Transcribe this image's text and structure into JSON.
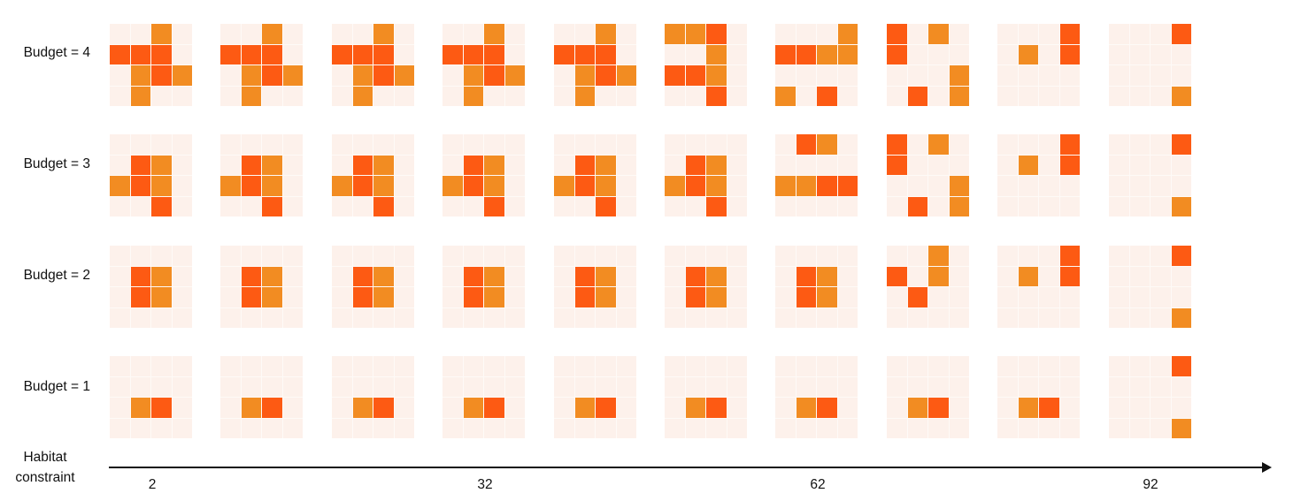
{
  "colors": {
    "background": "#fdf1eb",
    "light_orange": "#f28c22",
    "dark_orange": "#fd5a13"
  },
  "row_labels": [
    "Budget = 4",
    "Budget = 3",
    "Budget = 2",
    "Budget = 1"
  ],
  "axis": {
    "title_line1": "Habitat",
    "title_line2": "constraint",
    "ticks": [
      "2",
      "32",
      "62",
      "92"
    ]
  },
  "grids": [
    [
      [
        [
          0,
          0,
          1,
          0
        ],
        [
          2,
          2,
          2,
          0
        ],
        [
          0,
          1,
          2,
          1
        ],
        [
          0,
          1,
          0,
          0
        ]
      ],
      [
        [
          0,
          0,
          1,
          0
        ],
        [
          2,
          2,
          2,
          0
        ],
        [
          0,
          1,
          2,
          1
        ],
        [
          0,
          1,
          0,
          0
        ]
      ],
      [
        [
          0,
          0,
          1,
          0
        ],
        [
          2,
          2,
          2,
          0
        ],
        [
          0,
          1,
          2,
          1
        ],
        [
          0,
          1,
          0,
          0
        ]
      ],
      [
        [
          0,
          0,
          1,
          0
        ],
        [
          2,
          2,
          2,
          0
        ],
        [
          0,
          1,
          2,
          1
        ],
        [
          0,
          1,
          0,
          0
        ]
      ],
      [
        [
          0,
          0,
          1,
          0
        ],
        [
          2,
          2,
          2,
          0
        ],
        [
          0,
          1,
          2,
          1
        ],
        [
          0,
          1,
          0,
          0
        ]
      ],
      [
        [
          1,
          1,
          2,
          0
        ],
        [
          0,
          0,
          1,
          0
        ],
        [
          2,
          2,
          1,
          0
        ],
        [
          0,
          0,
          2,
          0
        ]
      ],
      [
        [
          0,
          0,
          0,
          1
        ],
        [
          2,
          2,
          1,
          1
        ],
        [
          0,
          0,
          0,
          0
        ],
        [
          1,
          0,
          2,
          0
        ]
      ],
      [
        [
          2,
          0,
          1,
          0
        ],
        [
          2,
          0,
          0,
          0
        ],
        [
          0,
          0,
          0,
          1
        ],
        [
          0,
          2,
          0,
          1
        ]
      ],
      [
        [
          0,
          0,
          0,
          2
        ],
        [
          0,
          1,
          0,
          2
        ],
        [
          0,
          0,
          0,
          0
        ],
        [
          0,
          0,
          0,
          0
        ]
      ],
      [
        [
          0,
          0,
          0,
          2
        ],
        [
          0,
          0,
          0,
          0
        ],
        [
          0,
          0,
          0,
          0
        ],
        [
          0,
          0,
          0,
          1
        ]
      ]
    ],
    [
      [
        [
          0,
          0,
          0,
          0
        ],
        [
          0,
          2,
          1,
          0
        ],
        [
          1,
          2,
          1,
          0
        ],
        [
          0,
          0,
          2,
          0
        ]
      ],
      [
        [
          0,
          0,
          0,
          0
        ],
        [
          0,
          2,
          1,
          0
        ],
        [
          1,
          2,
          1,
          0
        ],
        [
          0,
          0,
          2,
          0
        ]
      ],
      [
        [
          0,
          0,
          0,
          0
        ],
        [
          0,
          2,
          1,
          0
        ],
        [
          1,
          2,
          1,
          0
        ],
        [
          0,
          0,
          2,
          0
        ]
      ],
      [
        [
          0,
          0,
          0,
          0
        ],
        [
          0,
          2,
          1,
          0
        ],
        [
          1,
          2,
          1,
          0
        ],
        [
          0,
          0,
          2,
          0
        ]
      ],
      [
        [
          0,
          0,
          0,
          0
        ],
        [
          0,
          2,
          1,
          0
        ],
        [
          1,
          2,
          1,
          0
        ],
        [
          0,
          0,
          2,
          0
        ]
      ],
      [
        [
          0,
          0,
          0,
          0
        ],
        [
          0,
          2,
          1,
          0
        ],
        [
          1,
          2,
          1,
          0
        ],
        [
          0,
          0,
          2,
          0
        ]
      ],
      [
        [
          0,
          2,
          1,
          0
        ],
        [
          0,
          0,
          0,
          0
        ],
        [
          1,
          1,
          2,
          2
        ],
        [
          0,
          0,
          0,
          0
        ]
      ],
      [
        [
          2,
          0,
          1,
          0
        ],
        [
          2,
          0,
          0,
          0
        ],
        [
          0,
          0,
          0,
          1
        ],
        [
          0,
          2,
          0,
          1
        ]
      ],
      [
        [
          0,
          0,
          0,
          2
        ],
        [
          0,
          1,
          0,
          2
        ],
        [
          0,
          0,
          0,
          0
        ],
        [
          0,
          0,
          0,
          0
        ]
      ],
      [
        [
          0,
          0,
          0,
          2
        ],
        [
          0,
          0,
          0,
          0
        ],
        [
          0,
          0,
          0,
          0
        ],
        [
          0,
          0,
          0,
          1
        ]
      ]
    ],
    [
      [
        [
          0,
          0,
          0,
          0
        ],
        [
          0,
          2,
          1,
          0
        ],
        [
          0,
          2,
          1,
          0
        ],
        [
          0,
          0,
          0,
          0
        ]
      ],
      [
        [
          0,
          0,
          0,
          0
        ],
        [
          0,
          2,
          1,
          0
        ],
        [
          0,
          2,
          1,
          0
        ],
        [
          0,
          0,
          0,
          0
        ]
      ],
      [
        [
          0,
          0,
          0,
          0
        ],
        [
          0,
          2,
          1,
          0
        ],
        [
          0,
          2,
          1,
          0
        ],
        [
          0,
          0,
          0,
          0
        ]
      ],
      [
        [
          0,
          0,
          0,
          0
        ],
        [
          0,
          2,
          1,
          0
        ],
        [
          0,
          2,
          1,
          0
        ],
        [
          0,
          0,
          0,
          0
        ]
      ],
      [
        [
          0,
          0,
          0,
          0
        ],
        [
          0,
          2,
          1,
          0
        ],
        [
          0,
          2,
          1,
          0
        ],
        [
          0,
          0,
          0,
          0
        ]
      ],
      [
        [
          0,
          0,
          0,
          0
        ],
        [
          0,
          2,
          1,
          0
        ],
        [
          0,
          2,
          1,
          0
        ],
        [
          0,
          0,
          0,
          0
        ]
      ],
      [
        [
          0,
          0,
          0,
          0
        ],
        [
          0,
          2,
          1,
          0
        ],
        [
          0,
          2,
          1,
          0
        ],
        [
          0,
          0,
          0,
          0
        ]
      ],
      [
        [
          0,
          0,
          1,
          0
        ],
        [
          2,
          0,
          1,
          0
        ],
        [
          0,
          2,
          0,
          0
        ],
        [
          0,
          0,
          0,
          0
        ]
      ],
      [
        [
          0,
          0,
          0,
          2
        ],
        [
          0,
          1,
          0,
          2
        ],
        [
          0,
          0,
          0,
          0
        ],
        [
          0,
          0,
          0,
          0
        ]
      ],
      [
        [
          0,
          0,
          0,
          2
        ],
        [
          0,
          0,
          0,
          0
        ],
        [
          0,
          0,
          0,
          0
        ],
        [
          0,
          0,
          0,
          1
        ]
      ]
    ],
    [
      [
        [
          0,
          0,
          0,
          0
        ],
        [
          0,
          0,
          0,
          0
        ],
        [
          0,
          1,
          2,
          0
        ],
        [
          0,
          0,
          0,
          0
        ]
      ],
      [
        [
          0,
          0,
          0,
          0
        ],
        [
          0,
          0,
          0,
          0
        ],
        [
          0,
          1,
          2,
          0
        ],
        [
          0,
          0,
          0,
          0
        ]
      ],
      [
        [
          0,
          0,
          0,
          0
        ],
        [
          0,
          0,
          0,
          0
        ],
        [
          0,
          1,
          2,
          0
        ],
        [
          0,
          0,
          0,
          0
        ]
      ],
      [
        [
          0,
          0,
          0,
          0
        ],
        [
          0,
          0,
          0,
          0
        ],
        [
          0,
          1,
          2,
          0
        ],
        [
          0,
          0,
          0,
          0
        ]
      ],
      [
        [
          0,
          0,
          0,
          0
        ],
        [
          0,
          0,
          0,
          0
        ],
        [
          0,
          1,
          2,
          0
        ],
        [
          0,
          0,
          0,
          0
        ]
      ],
      [
        [
          0,
          0,
          0,
          0
        ],
        [
          0,
          0,
          0,
          0
        ],
        [
          0,
          1,
          2,
          0
        ],
        [
          0,
          0,
          0,
          0
        ]
      ],
      [
        [
          0,
          0,
          0,
          0
        ],
        [
          0,
          0,
          0,
          0
        ],
        [
          0,
          1,
          2,
          0
        ],
        [
          0,
          0,
          0,
          0
        ]
      ],
      [
        [
          0,
          0,
          0,
          0
        ],
        [
          0,
          0,
          0,
          0
        ],
        [
          0,
          1,
          2,
          0
        ],
        [
          0,
          0,
          0,
          0
        ]
      ],
      [
        [
          0,
          0,
          0,
          0
        ],
        [
          0,
          0,
          0,
          0
        ],
        [
          0,
          1,
          2,
          0
        ],
        [
          0,
          0,
          0,
          0
        ]
      ],
      [
        [
          0,
          0,
          0,
          2
        ],
        [
          0,
          0,
          0,
          0
        ],
        [
          0,
          0,
          0,
          0
        ],
        [
          0,
          0,
          0,
          1
        ]
      ]
    ]
  ]
}
